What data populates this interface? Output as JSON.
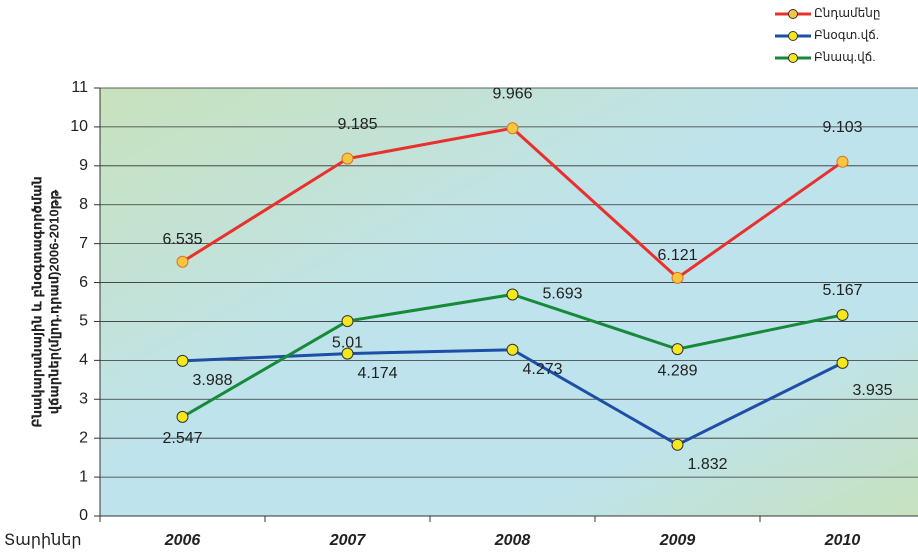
{
  "chart_data": {
    "type": "line",
    "y_label": [
      "Բնակարանային և բնօգտագործման",
      "վճարներ(մլրդ.դրամ)2006-2010թթ"
    ],
    "x_label": "Տարիներ",
    "categories": [
      "2006",
      "2007",
      "2008",
      "2009",
      "2010"
    ],
    "series": [
      {
        "name": "Ընդամենը",
        "color": "#e8302c",
        "marker": "#f7c640",
        "values": [
          6.535,
          9.185,
          9.966,
          6.121,
          9.103
        ]
      },
      {
        "name": "Բնօգտ.վճ.",
        "color": "#1d4fa6",
        "marker": "#f4e81c",
        "values": [
          3.988,
          4.174,
          4.273,
          1.832,
          3.935
        ]
      },
      {
        "name": "Բնապ.վճ.",
        "color": "#178a3a",
        "marker": "#f4e81c",
        "values": [
          2.547,
          5.01,
          5.693,
          4.289,
          5.167
        ]
      }
    ],
    "ylim": [
      0,
      11
    ],
    "yticks": [
      0,
      1,
      2,
      3,
      4,
      5,
      6,
      7,
      8,
      9,
      10,
      11
    ],
    "grid": true
  }
}
